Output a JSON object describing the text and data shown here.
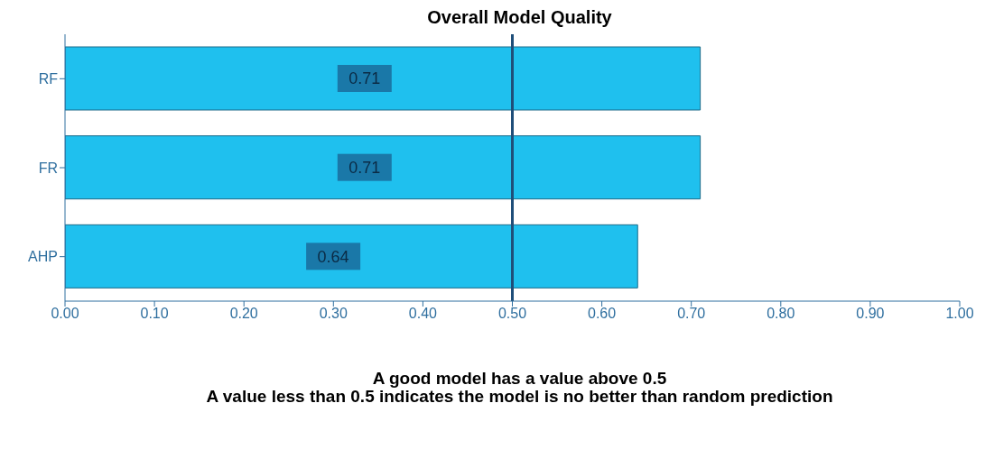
{
  "chart_data": {
    "type": "bar",
    "orientation": "horizontal",
    "title": "Overall Model Quality",
    "categories": [
      "RF",
      "FR",
      "AHP"
    ],
    "values": [
      0.71,
      0.71,
      0.64
    ],
    "color": "#1fc0ee",
    "data_labels": true,
    "xlim": [
      0,
      1.0
    ],
    "xticks": [
      {
        "value": 0,
        "label": "0.00"
      },
      {
        "value": 0.1,
        "label": "0.10"
      },
      {
        "value": 0.2,
        "label": "0.20"
      },
      {
        "value": 0.3,
        "label": "0.30"
      },
      {
        "value": 0.4,
        "label": "0.40"
      },
      {
        "value": 0.5,
        "label": "0.50"
      },
      {
        "value": 0.6,
        "label": "0.60"
      },
      {
        "value": 0.7,
        "label": "0.70"
      },
      {
        "value": 0.8,
        "label": "0.80"
      },
      {
        "value": 0.9,
        "label": "0.90"
      },
      {
        "value": 1.0,
        "label": "1.00"
      }
    ],
    "ref_lines": [
      {
        "axis": "x",
        "value": 0.5,
        "color": "#1f4e79"
      }
    ],
    "annotations": [
      "A good model has a value above 0.5",
      "A value less than 0.5 indicates the model is no better than random prediction"
    ],
    "grid": false
  }
}
